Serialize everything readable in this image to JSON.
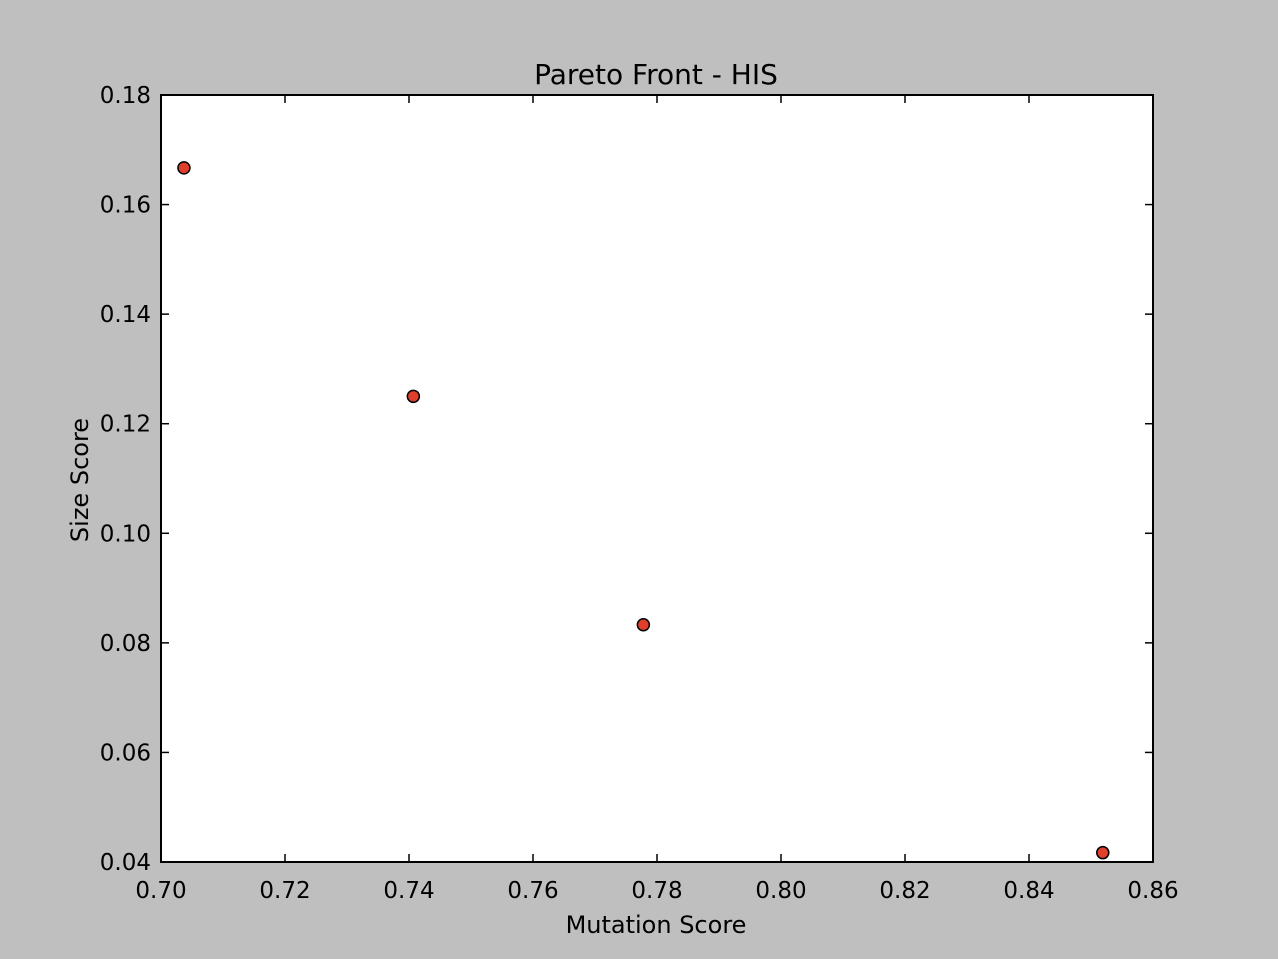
{
  "chart_data": {
    "type": "scatter",
    "title": "Pareto Front - HIS",
    "xlabel": "Mutation Score",
    "ylabel": "Size Score",
    "xlim": [
      0.7,
      0.86
    ],
    "ylim": [
      0.04,
      0.18
    ],
    "xticks": [
      "0.70",
      "0.72",
      "0.74",
      "0.76",
      "0.78",
      "0.80",
      "0.82",
      "0.84",
      "0.86"
    ],
    "yticks": [
      "0.04",
      "0.06",
      "0.08",
      "0.10",
      "0.12",
      "0.14",
      "0.16",
      "0.18"
    ],
    "grid": false,
    "legend": false,
    "series": [
      {
        "x": [
          0.7037,
          0.7407,
          0.7778,
          0.8519
        ],
        "y": [
          0.1667,
          0.125,
          0.0833,
          0.0417
        ]
      }
    ],
    "colors": {
      "figure_background": "#bfbfbf",
      "plot_background": "#ffffff",
      "marker_fill": "#e0402b",
      "marker_edge": "#000000"
    }
  }
}
